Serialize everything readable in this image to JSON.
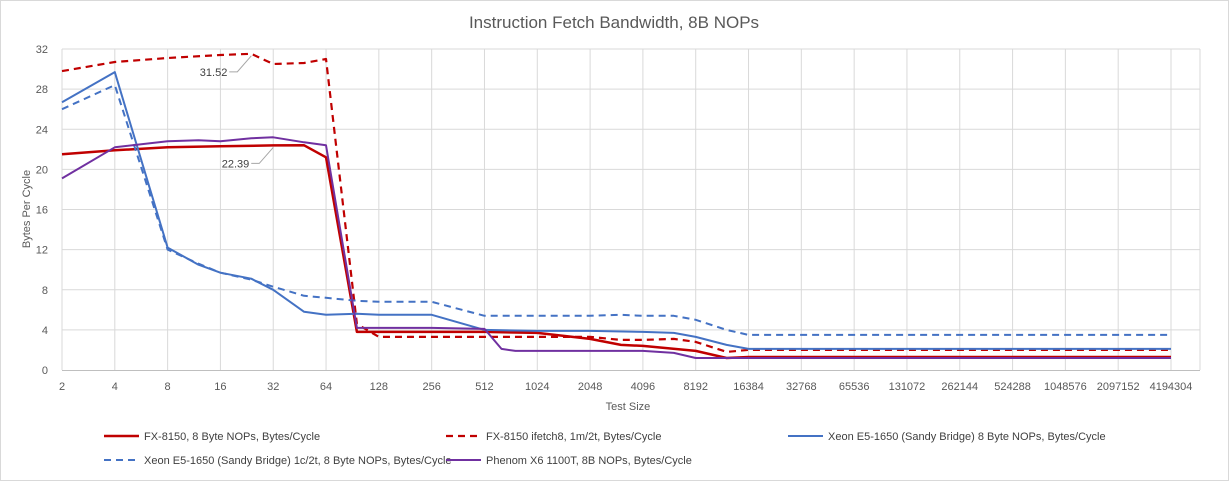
{
  "chart_data": {
    "type": "line",
    "title": "Instruction Fetch Bandwidth, 8B NOPs",
    "xlabel": "Test Size",
    "ylabel": "Bytes Per Cycle",
    "ylim": [
      0,
      32
    ],
    "yticks": [
      0,
      4,
      8,
      12,
      16,
      20,
      24,
      28,
      32
    ],
    "x_scale": "log2",
    "grid": true,
    "legend_position": "bottom",
    "categories": [
      "2",
      "4",
      "8",
      "16",
      "32",
      "64",
      "128",
      "256",
      "512",
      "1024",
      "2048",
      "4096",
      "8192",
      "16384",
      "32768",
      "65536",
      "131072",
      "262144",
      "524288",
      "1048576",
      "2097152",
      "4194304"
    ],
    "series": [
      {
        "name": "FX-8150, 8 Byte NOPs, Bytes/Cycle",
        "color": "#c00000",
        "dash": "solid",
        "width": 2.5,
        "x": [
          2,
          4,
          8,
          16,
          32,
          48,
          64,
          96,
          512,
          1024,
          2048,
          3072,
          4096,
          8192,
          12288,
          16384,
          4194304
        ],
        "y": [
          21.5,
          21.9,
          22.2,
          22.3,
          22.39,
          22.4,
          21.2,
          3.8,
          3.8,
          3.7,
          3.1,
          2.5,
          2.4,
          1.9,
          1.2,
          1.3,
          1.3
        ]
      },
      {
        "name": "FX-8150 ifetch8, 1m/2t, Bytes/Cycle",
        "color": "#c00000",
        "dash": "dashed",
        "width": 2.2,
        "x": [
          2,
          4,
          8,
          16,
          24,
          32,
          48,
          64,
          96,
          128,
          512,
          1024,
          2048,
          3072,
          4096,
          6144,
          8192,
          12288,
          16384,
          4194304
        ],
        "y": [
          29.8,
          30.7,
          31.1,
          31.4,
          31.52,
          30.5,
          30.6,
          31.0,
          4.6,
          3.3,
          3.3,
          3.3,
          3.3,
          3.0,
          3.0,
          3.1,
          2.8,
          1.8,
          2.0,
          2.0
        ]
      },
      {
        "name": "Xeon E5-1650 (Sandy Bridge) 8 Byte NOPs, Bytes/Cycle",
        "color": "#4472c4",
        "dash": "solid",
        "width": 2,
        "x": [
          2,
          4,
          8,
          12,
          16,
          24,
          32,
          48,
          64,
          96,
          128,
          256,
          512,
          1024,
          2048,
          4096,
          6144,
          8192,
          12288,
          16384,
          4194304
        ],
        "y": [
          26.7,
          29.7,
          12.2,
          10.5,
          9.7,
          9.1,
          8.0,
          5.8,
          5.5,
          5.6,
          5.5,
          5.5,
          4.0,
          3.9,
          3.9,
          3.8,
          3.7,
          3.3,
          2.5,
          2.1,
          2.1
        ]
      },
      {
        "name": "Xeon E5-1650 (Sandy Bridge) 1c/2t,  8 Byte NOPs, Bytes/Cycle",
        "color": "#4472c4",
        "dash": "dashed",
        "width": 2,
        "x": [
          2,
          4,
          8,
          12,
          16,
          24,
          32,
          48,
          64,
          96,
          128,
          256,
          512,
          1024,
          2048,
          3072,
          4096,
          6144,
          8192,
          12288,
          16384,
          4194304
        ],
        "y": [
          26.0,
          28.4,
          12.0,
          10.6,
          9.7,
          9.0,
          8.3,
          7.4,
          7.2,
          6.9,
          6.8,
          6.8,
          5.4,
          5.4,
          5.4,
          5.5,
          5.4,
          5.4,
          5.0,
          4.0,
          3.5,
          3.5
        ]
      },
      {
        "name": "Phenom X6 1100T, 8B NOPs, Bytes/Cycle",
        "color": "#7030a0",
        "dash": "solid",
        "width": 2,
        "x": [
          2,
          4,
          8,
          12,
          16,
          24,
          32,
          48,
          64,
          96,
          128,
          256,
          512,
          640,
          768,
          1024,
          2048,
          4096,
          6144,
          8192,
          10240,
          16384,
          4194304
        ],
        "y": [
          19.1,
          22.2,
          22.8,
          22.9,
          22.8,
          23.1,
          23.2,
          22.7,
          22.4,
          4.2,
          4.2,
          4.2,
          4.1,
          2.1,
          1.9,
          1.9,
          1.9,
          1.9,
          1.7,
          1.2,
          1.2,
          1.2,
          1.2
        ]
      }
    ],
    "annotations": [
      {
        "text": "31.52",
        "series": 1,
        "x": 24,
        "y": 31.52
      },
      {
        "text": "22.39",
        "series": 0,
        "x": 32,
        "y": 22.39
      }
    ]
  }
}
